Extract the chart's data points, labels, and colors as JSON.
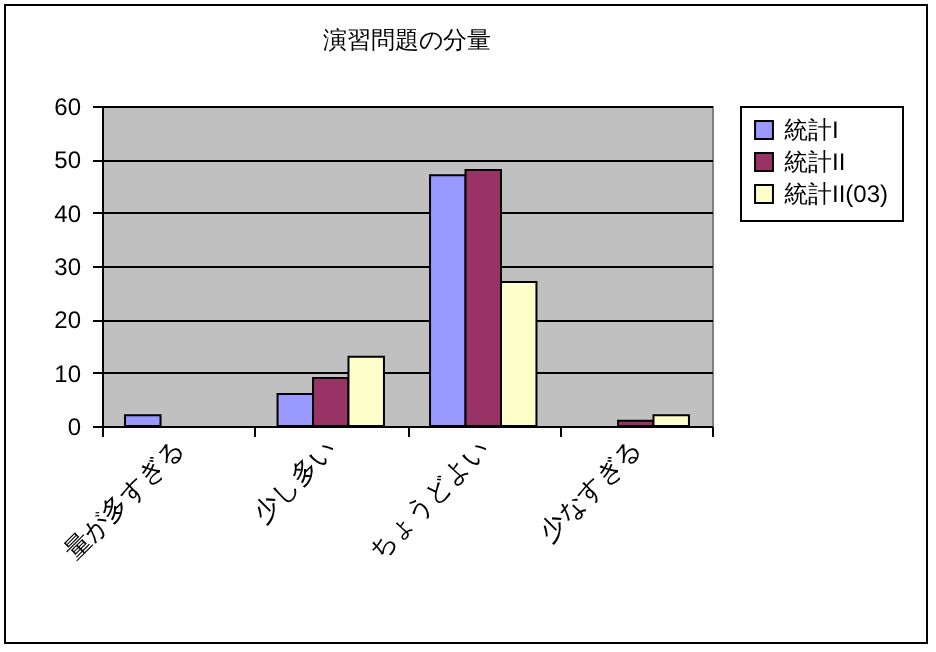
{
  "chart_data": {
    "type": "bar",
    "title": "演習問題の分量",
    "categories": [
      "量が多すぎる",
      "少し多い",
      "ちょうどよい",
      "少なすぎる"
    ],
    "series": [
      {
        "name": "統計I",
        "color": "#9999ff",
        "values": [
          2,
          6,
          47,
          0
        ]
      },
      {
        "name": "統計II",
        "color": "#993366",
        "values": [
          0,
          9,
          48,
          1
        ]
      },
      {
        "name": "統計II(03)",
        "color": "#ffffcc",
        "values": [
          0,
          13,
          27,
          2
        ]
      }
    ],
    "ylim": [
      0,
      60
    ],
    "yticks": [
      0,
      10,
      20,
      30,
      40,
      50,
      60
    ],
    "grid": "y",
    "legend": "right"
  }
}
